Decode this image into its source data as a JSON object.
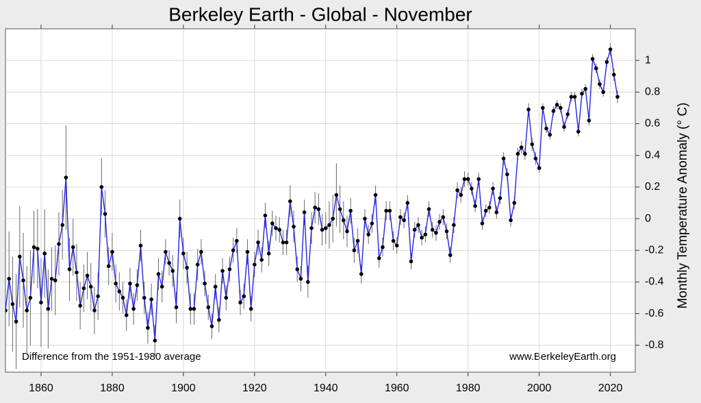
{
  "chart_data": {
    "type": "line",
    "title": "Berkeley Earth - Global - November",
    "y_label": "Monthly Temperature Anomaly (° C)",
    "annotations": [
      "Difference from the 1951-1980 average",
      "www.BerkeleyEarth.org"
    ],
    "line_color": "#2323e6",
    "marker_color": "#000000",
    "error_color": "#666666",
    "grid": true,
    "xlim": [
      1850,
      2027
    ],
    "ylim": [
      -0.97,
      1.2
    ],
    "xticks": [
      1860,
      1880,
      1900,
      1920,
      1940,
      1960,
      1980,
      2000,
      2020
    ],
    "yticks": [
      -0.8,
      -0.6,
      -0.4,
      -0.2,
      0,
      0.2,
      0.4,
      0.6,
      0.8,
      1
    ],
    "x": [
      1850,
      1851,
      1852,
      1853,
      1854,
      1855,
      1856,
      1857,
      1858,
      1859,
      1860,
      1861,
      1862,
      1863,
      1864,
      1865,
      1866,
      1867,
      1868,
      1869,
      1870,
      1871,
      1872,
      1873,
      1874,
      1875,
      1876,
      1877,
      1878,
      1879,
      1880,
      1881,
      1882,
      1883,
      1884,
      1885,
      1886,
      1887,
      1888,
      1889,
      1890,
      1891,
      1892,
      1893,
      1894,
      1895,
      1896,
      1897,
      1898,
      1899,
      1900,
      1901,
      1902,
      1903,
      1904,
      1905,
      1906,
      1907,
      1908,
      1909,
      1910,
      1911,
      1912,
      1913,
      1914,
      1915,
      1916,
      1917,
      1918,
      1919,
      1920,
      1921,
      1922,
      1923,
      1924,
      1925,
      1926,
      1927,
      1928,
      1929,
      1930,
      1931,
      1932,
      1933,
      1934,
      1935,
      1936,
      1937,
      1938,
      1939,
      1940,
      1941,
      1942,
      1943,
      1944,
      1945,
      1946,
      1947,
      1948,
      1949,
      1950,
      1951,
      1952,
      1953,
      1954,
      1955,
      1956,
      1957,
      1958,
      1959,
      1960,
      1961,
      1962,
      1963,
      1964,
      1965,
      1966,
      1967,
      1968,
      1969,
      1970,
      1971,
      1972,
      1973,
      1974,
      1975,
      1976,
      1977,
      1978,
      1979,
      1980,
      1981,
      1982,
      1983,
      1984,
      1985,
      1986,
      1987,
      1988,
      1989,
      1990,
      1991,
      1992,
      1993,
      1994,
      1995,
      1996,
      1997,
      1998,
      1999,
      2000,
      2001,
      2002,
      2003,
      2004,
      2005,
      2006,
      2007,
      2008,
      2009,
      2010,
      2011,
      2012,
      2013,
      2014,
      2015,
      2016,
      2017,
      2018,
      2019,
      2020,
      2021,
      2022
    ],
    "values": [
      -0.58,
      -0.38,
      -0.54,
      -0.65,
      -0.24,
      -0.39,
      -0.58,
      -0.5,
      -0.18,
      -0.19,
      -0.53,
      -0.22,
      -0.57,
      -0.38,
      -0.39,
      -0.16,
      -0.04,
      0.26,
      -0.32,
      -0.18,
      -0.34,
      -0.55,
      -0.44,
      -0.36,
      -0.43,
      -0.58,
      -0.49,
      0.2,
      0.03,
      -0.3,
      -0.21,
      -0.41,
      -0.46,
      -0.5,
      -0.61,
      -0.41,
      -0.57,
      -0.42,
      -0.17,
      -0.5,
      -0.69,
      -0.51,
      -0.77,
      -0.35,
      -0.43,
      -0.21,
      -0.28,
      -0.33,
      -0.56,
      0.0,
      -0.22,
      -0.31,
      -0.57,
      -0.57,
      -0.29,
      -0.21,
      -0.41,
      -0.56,
      -0.68,
      -0.43,
      -0.64,
      -0.33,
      -0.5,
      -0.32,
      -0.2,
      -0.14,
      -0.53,
      -0.49,
      -0.21,
      -0.57,
      -0.29,
      -0.15,
      -0.26,
      0.02,
      -0.22,
      -0.03,
      -0.06,
      -0.07,
      -0.15,
      -0.15,
      0.11,
      -0.05,
      -0.32,
      -0.38,
      0.04,
      -0.4,
      -0.06,
      0.07,
      0.06,
      -0.07,
      -0.06,
      -0.04,
      0.0,
      0.15,
      0.06,
      -0.01,
      -0.08,
      0.05,
      -0.2,
      -0.14,
      -0.35,
      0.0,
      -0.1,
      -0.03,
      0.15,
      -0.25,
      -0.18,
      0.05,
      0.05,
      -0.14,
      -0.17,
      0.01,
      -0.01,
      0.1,
      -0.27,
      -0.07,
      -0.04,
      -0.12,
      -0.1,
      0.06,
      -0.07,
      -0.09,
      -0.02,
      0.01,
      -0.08,
      -0.23,
      -0.04,
      0.18,
      0.15,
      0.25,
      0.25,
      0.19,
      0.08,
      0.25,
      -0.03,
      0.05,
      0.07,
      0.19,
      0.04,
      0.13,
      0.38,
      0.28,
      -0.01,
      0.1,
      0.41,
      0.45,
      0.41,
      0.69,
      0.47,
      0.38,
      0.32,
      0.7,
      0.57,
      0.53,
      0.68,
      0.72,
      0.7,
      0.58,
      0.66,
      0.77,
      0.77,
      0.55,
      0.79,
      0.82,
      0.62,
      1.01,
      0.95,
      0.85,
      0.8,
      0.99,
      1.07,
      0.91,
      0.77
    ],
    "errors": [
      0.25,
      0.3,
      0.3,
      0.3,
      0.32,
      0.3,
      0.28,
      0.3,
      0.23,
      0.25,
      0.28,
      0.28,
      0.25,
      0.2,
      0.22,
      0.2,
      0.22,
      0.33,
      0.2,
      0.18,
      0.18,
      0.15,
      0.15,
      0.15,
      0.15,
      0.15,
      0.15,
      0.18,
      0.15,
      0.12,
      0.12,
      0.12,
      0.12,
      0.1,
      0.1,
      0.1,
      0.1,
      0.1,
      0.1,
      0.1,
      0.1,
      0.1,
      0.1,
      0.1,
      0.1,
      0.08,
      0.08,
      0.1,
      0.1,
      0.12,
      0.1,
      0.1,
      0.1,
      0.1,
      0.1,
      0.08,
      0.08,
      0.08,
      0.08,
      0.08,
      0.08,
      0.08,
      0.08,
      0.08,
      0.08,
      0.08,
      0.08,
      0.08,
      0.08,
      0.08,
      0.08,
      0.08,
      0.08,
      0.08,
      0.08,
      0.08,
      0.08,
      0.08,
      0.08,
      0.08,
      0.1,
      0.1,
      0.08,
      0.08,
      0.08,
      0.1,
      0.1,
      0.1,
      0.1,
      0.1,
      0.1,
      0.15,
      0.15,
      0.2,
      0.15,
      0.12,
      0.1,
      0.08,
      0.08,
      0.08,
      0.06,
      0.06,
      0.06,
      0.06,
      0.06,
      0.06,
      0.06,
      0.06,
      0.06,
      0.06,
      0.05,
      0.05,
      0.05,
      0.05,
      0.05,
      0.05,
      0.05,
      0.05,
      0.05,
      0.05,
      0.05,
      0.05,
      0.05,
      0.05,
      0.05,
      0.05,
      0.05,
      0.05,
      0.05,
      0.05,
      0.04,
      0.04,
      0.04,
      0.04,
      0.04,
      0.04,
      0.04,
      0.04,
      0.04,
      0.04,
      0.04,
      0.04,
      0.04,
      0.04,
      0.04,
      0.04,
      0.04,
      0.04,
      0.04,
      0.04,
      0.03,
      0.03,
      0.03,
      0.03,
      0.03,
      0.03,
      0.03,
      0.03,
      0.03,
      0.03,
      0.03,
      0.03,
      0.03,
      0.03,
      0.03,
      0.03,
      0.03,
      0.03,
      0.03,
      0.03,
      0.04,
      0.04,
      0.04
    ]
  }
}
